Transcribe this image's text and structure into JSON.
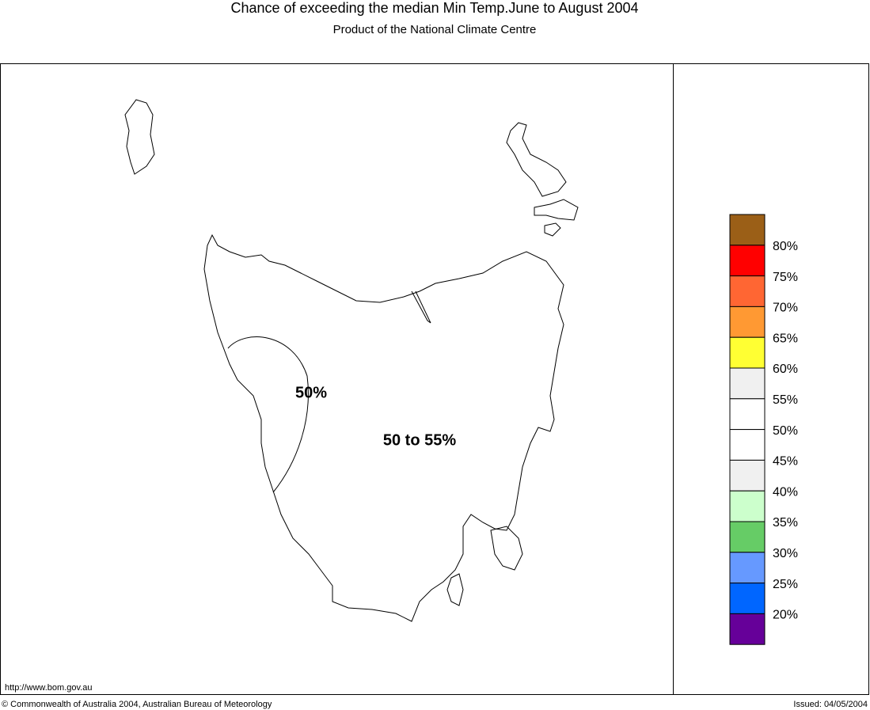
{
  "header": {
    "title": "Chance of exceeding the median Min Temp.June to August 2004",
    "subtitle": "Product of the National Climate Centre"
  },
  "map": {
    "contour_label": "50%",
    "region_label": "50 to 55%"
  },
  "legend": {
    "colors": [
      "#9b5f17",
      "#ff0000",
      "#ff6633",
      "#ff9933",
      "#ffff33",
      "#f0f0f0",
      "#ffffff",
      "#ffffff",
      "#f0f0f0",
      "#ccffcc",
      "#66cc66",
      "#6699ff",
      "#0066ff",
      "#660099"
    ],
    "labels": [
      "80%",
      "75%",
      "70%",
      "65%",
      "60%",
      "55%",
      "50%",
      "45%",
      "40%",
      "35%",
      "30%",
      "25%",
      "20%"
    ]
  },
  "footer": {
    "url": "http://www.bom.gov.au",
    "copyright": "© Commonwealth of Australia 2004, Australian Bureau of Meteorology",
    "issued": "Issued: 04/05/2004"
  }
}
